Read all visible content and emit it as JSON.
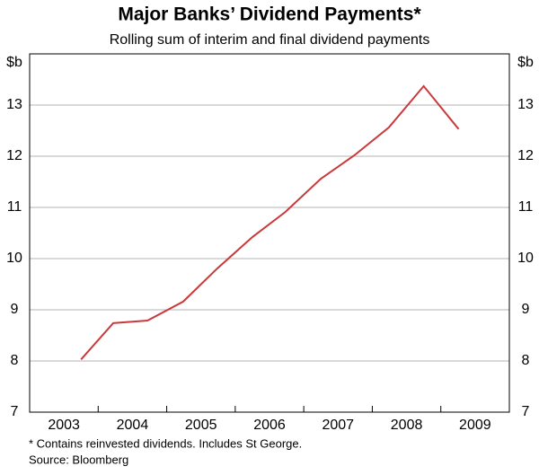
{
  "chart_data": {
    "type": "line",
    "title": "Major Banks’ Dividend Payments*",
    "subtitle": "Rolling sum of interim and final dividend payments",
    "y_unit": "$b",
    "x": [
      2003.75,
      2004.22,
      2004.72,
      2005.24,
      2005.74,
      2006.25,
      2006.73,
      2007.25,
      2007.74,
      2008.24,
      2008.75,
      2009.26
    ],
    "series": [
      {
        "name": "Dividend payments",
        "color": "#c9393b",
        "values": [
          8.03,
          8.74,
          8.79,
          9.16,
          9.81,
          10.42,
          10.91,
          11.56,
          12.02,
          12.56,
          13.37,
          12.53
        ]
      }
    ],
    "xlim": [
      2003,
      2010
    ],
    "xticks": [
      {
        "value": 2003.5,
        "label": "2003"
      },
      {
        "value": 2004.5,
        "label": "2004"
      },
      {
        "value": 2005.5,
        "label": "2005"
      },
      {
        "value": 2006.5,
        "label": "2006"
      },
      {
        "value": 2007.5,
        "label": "2007"
      },
      {
        "value": 2008.5,
        "label": "2008"
      },
      {
        "value": 2009.5,
        "label": "2009"
      }
    ],
    "x_boundaries": [
      2004,
      2005,
      2006,
      2007,
      2008,
      2009
    ],
    "ylim": [
      7,
      14
    ],
    "yticks": [
      7,
      8,
      9,
      10,
      11,
      12,
      13
    ],
    "grid": true,
    "notes": [
      "*   Contains reinvested dividends. Includes St George.",
      "Source: Bloomberg"
    ]
  }
}
